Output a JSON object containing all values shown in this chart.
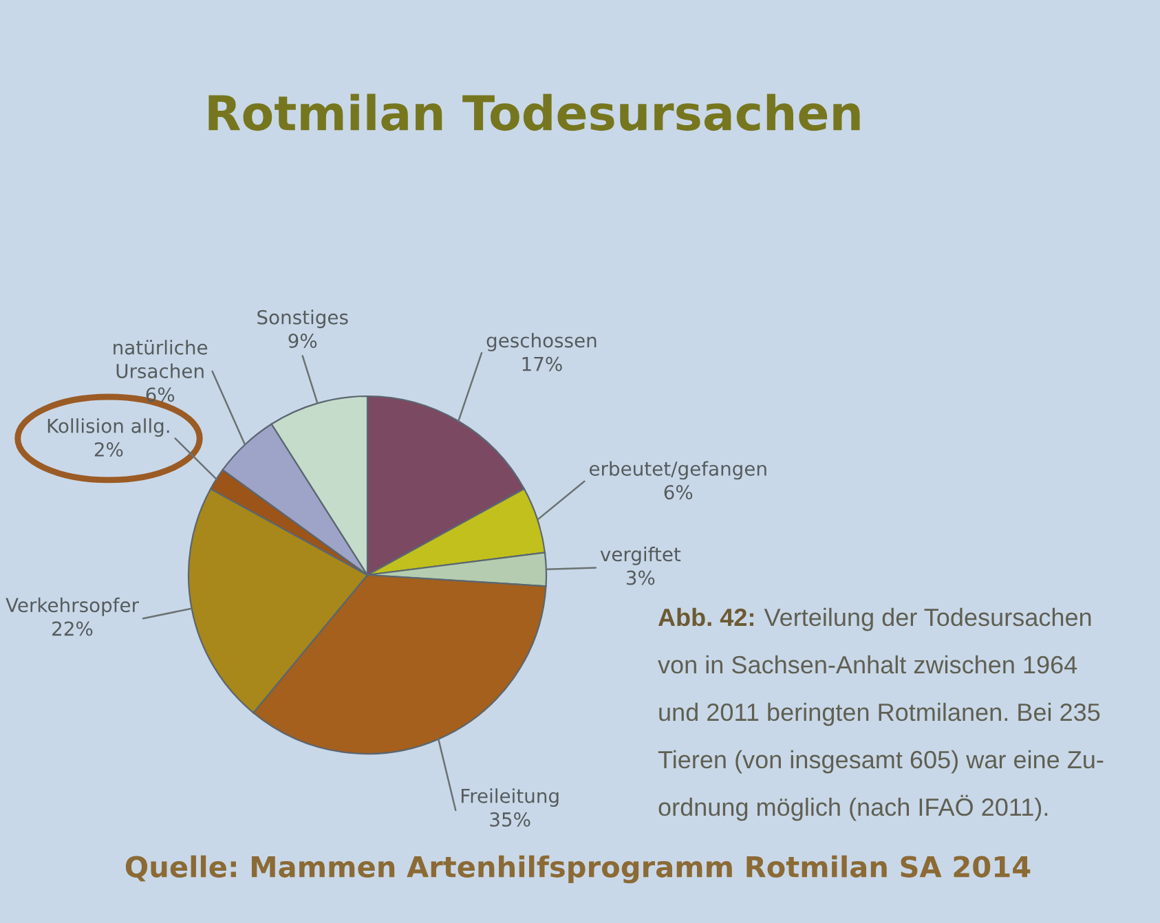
{
  "chart_data": {
    "type": "pie",
    "title": "Rotmilan Todesursachen",
    "categories": [
      "geschossen",
      "erbeutet/gefangen",
      "vergiftet",
      "Freileitung",
      "Verkehrsopfer",
      "Kollision allg.",
      "natürliche\nUrsachen",
      "Sonstiges"
    ],
    "values": [
      17,
      6,
      3,
      35,
      22,
      2,
      6,
      9
    ],
    "value_labels": [
      "17%",
      "6%",
      "3%",
      "35%",
      "22%",
      "2%",
      "6%",
      "9%"
    ],
    "colors": [
      "#7b4a62",
      "#c2c01c",
      "#b5ccb0",
      "#a4601c",
      "#a8881a",
      "#9c5418",
      "#9ea4c8",
      "#c6dccb"
    ],
    "annotations": [
      "Abb. 42:",
      "Verteilung der Todesursachen\nvon in Sachsen-Anhalt zwischen 1964\nund 2011 beringten Rotmilanen. Bei 235\nTieren (von insgesamt 605) war eine Zu-\nordnung möglich (nach IFAÖ 2011).",
      "Quelle: Mammen Artenhilfsprogramm Rotmilan SA 2014"
    ]
  }
}
